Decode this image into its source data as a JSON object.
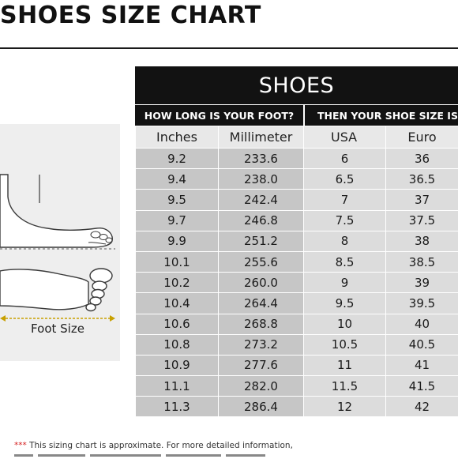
{
  "title": "SHOES SIZE CHART",
  "illustration": {
    "label": "Foot Size",
    "icons": [
      "foot-side-icon",
      "foot-sole-icon",
      "measure-arrow-icon"
    ]
  },
  "table": {
    "header": "SHOES",
    "group_left": "HOW LONG IS YOUR FOOT?",
    "group_right": "THEN YOUR SHOE SIZE IS",
    "columns": [
      "Inches",
      "Millimeter",
      "USA",
      "Euro"
    ],
    "rows": [
      [
        "9.2",
        "233.6",
        "6",
        "36"
      ],
      [
        "9.4",
        "238.0",
        "6.5",
        "36.5"
      ],
      [
        "9.5",
        "242.4",
        "7",
        "37"
      ],
      [
        "9.7",
        "246.8",
        "7.5",
        "37.5"
      ],
      [
        "9.9",
        "251.2",
        "8",
        "38"
      ],
      [
        "10.1",
        "255.6",
        "8.5",
        "38.5"
      ],
      [
        "10.2",
        "260.0",
        "9",
        "39"
      ],
      [
        "10.4",
        "264.4",
        "9.5",
        "39.5"
      ],
      [
        "10.6",
        "268.8",
        "10",
        "40"
      ],
      [
        "10.8",
        "273.2",
        "10.5",
        "40.5"
      ],
      [
        "10.9",
        "277.6",
        "11",
        "41"
      ],
      [
        "11.1",
        "282.0",
        "11.5",
        "41.5"
      ],
      [
        "11.3",
        "286.4",
        "12",
        "42"
      ]
    ]
  },
  "footnote": {
    "stars": "***",
    "text": " This sizing chart is approximate. For more detailed information,"
  },
  "colors": {
    "header_bg": "#121212",
    "cell_dark": "#c6c6c6",
    "cell_light": "#dcdcdc",
    "footnote_stars": "#d42020"
  }
}
